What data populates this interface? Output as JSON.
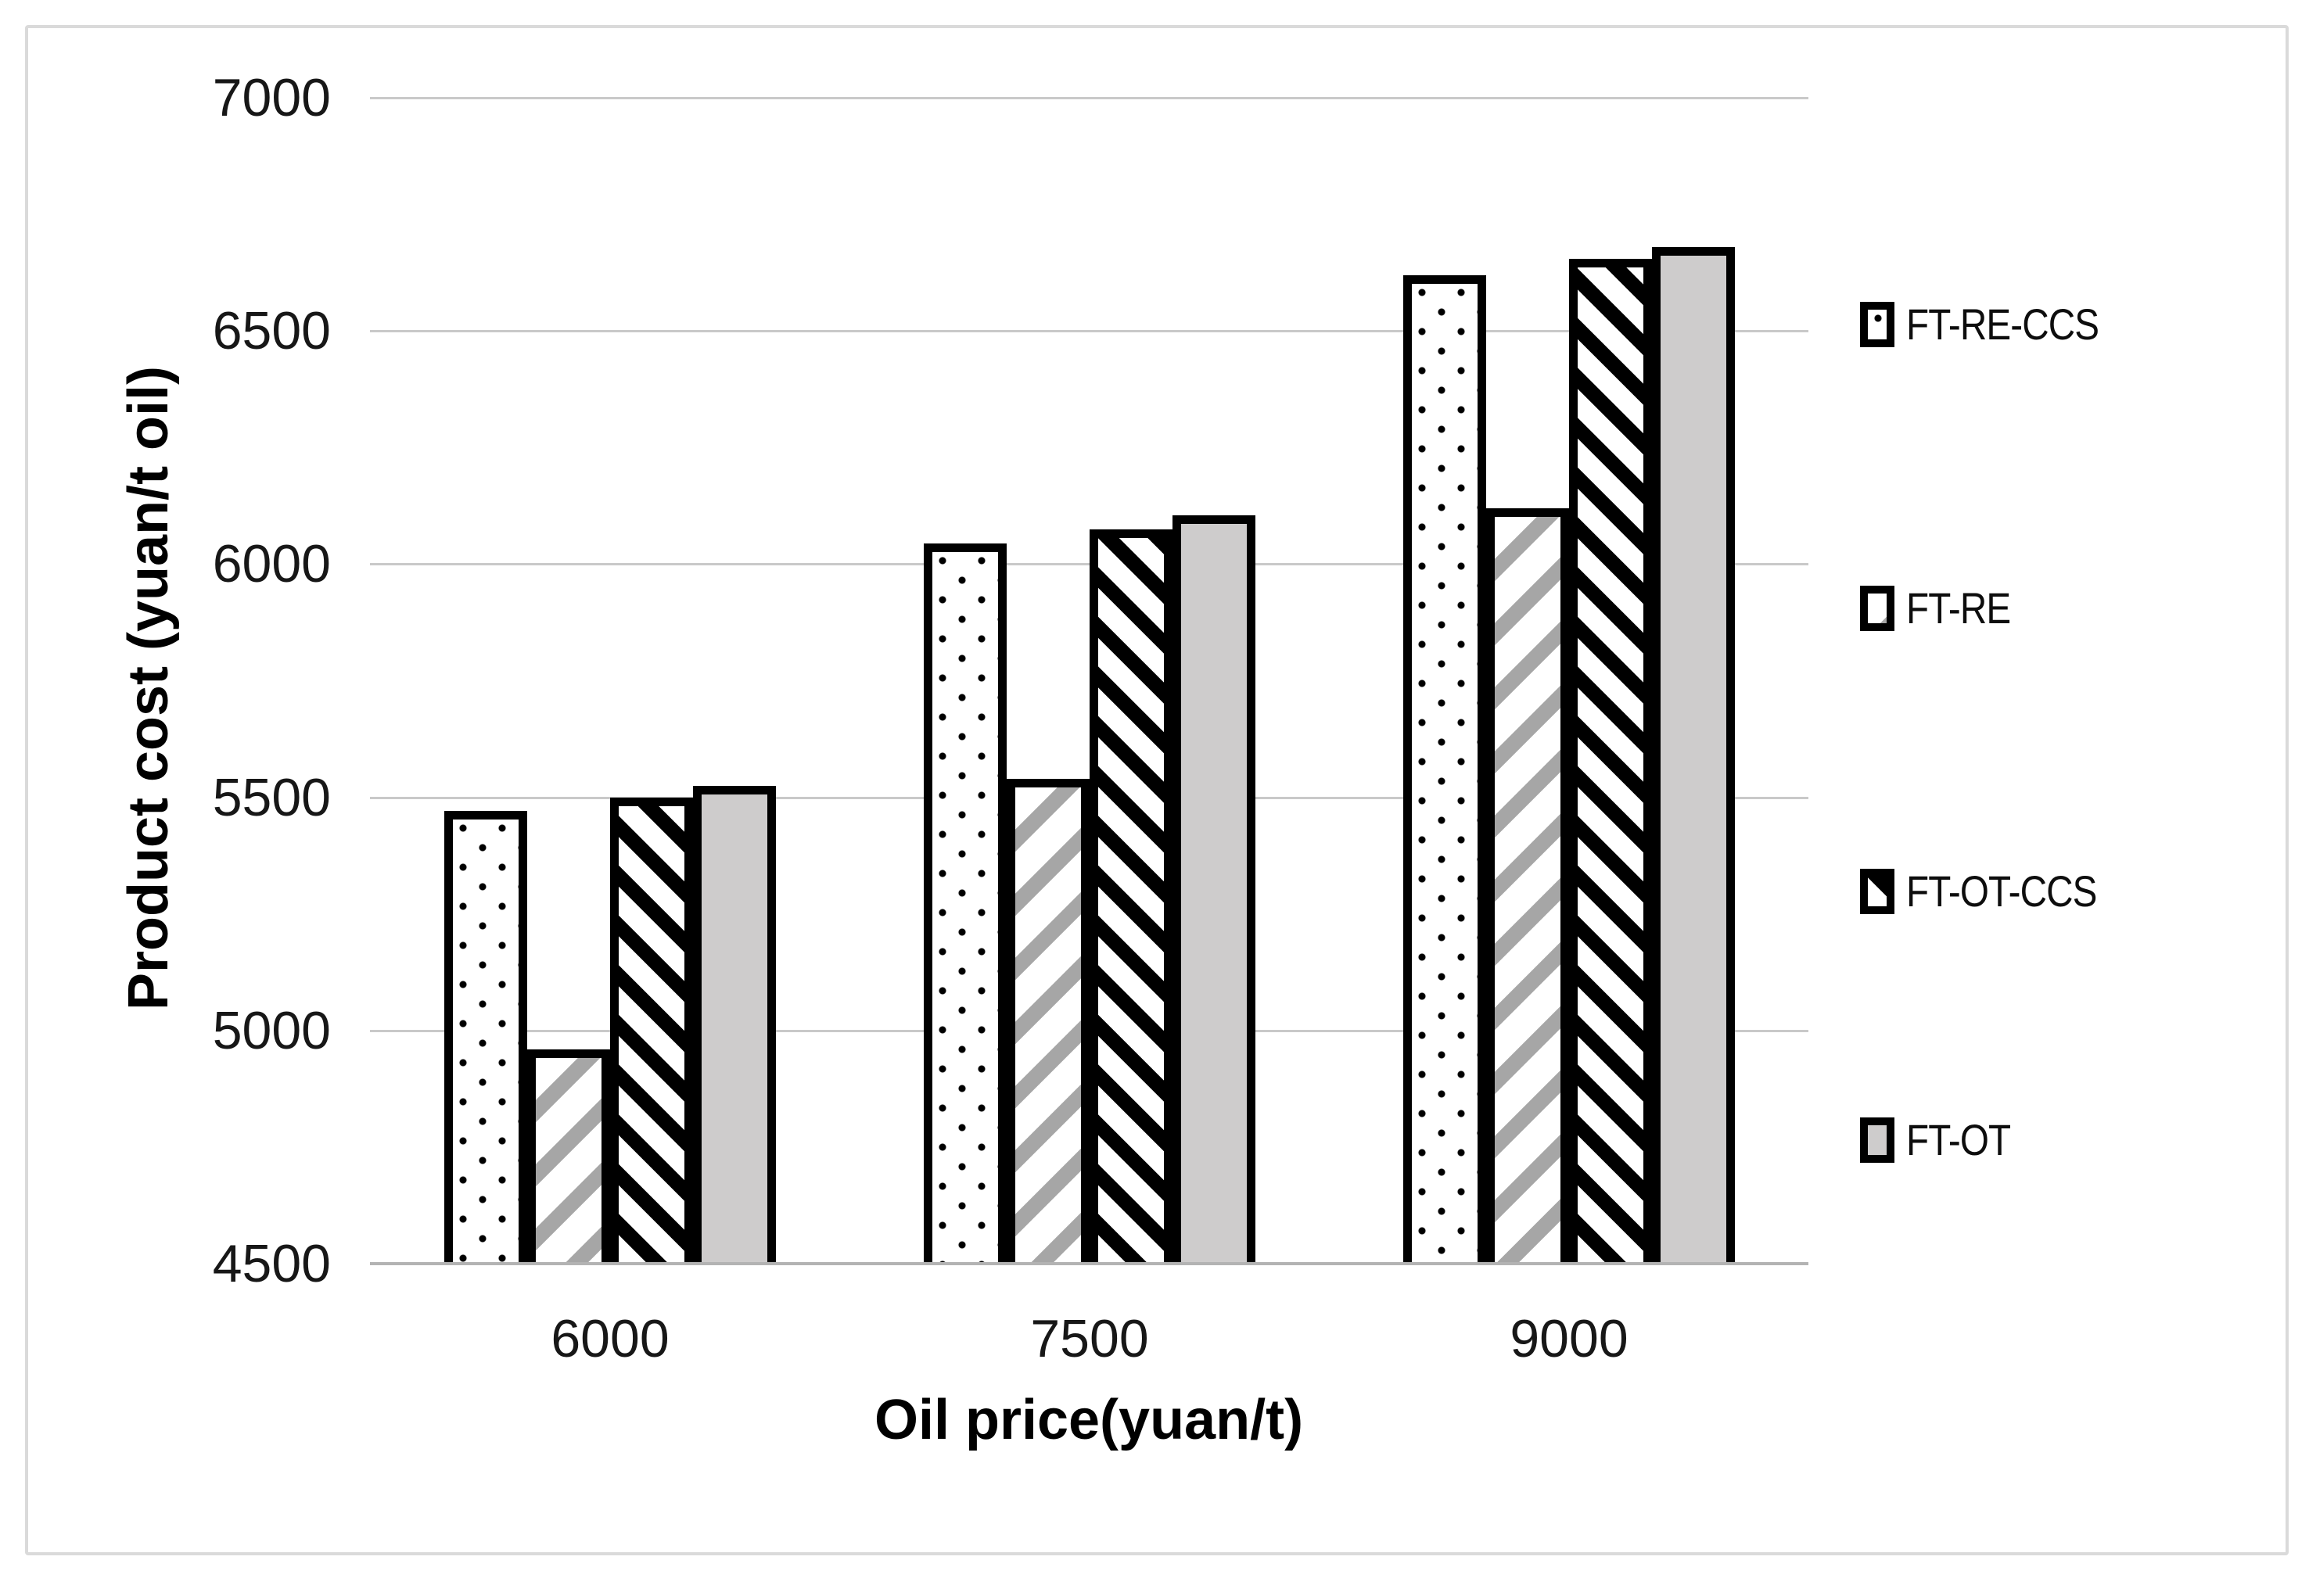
{
  "chart_data": {
    "type": "bar",
    "title": "",
    "xlabel": "Oil price(yuan/t)",
    "ylabel": "Product cost (yuan/t oil)",
    "categories": [
      "6000",
      "7500",
      "9000"
    ],
    "series": [
      {
        "name": "FT-RE-CCS",
        "pattern": "dotted",
        "values": [
          5470,
          6045,
          6620
        ]
      },
      {
        "name": "FT-RE",
        "pattern": "light_diagonal_up",
        "values": [
          4960,
          5540,
          6120
        ]
      },
      {
        "name": "FT-OT-CCS",
        "pattern": "black_diagonal_down",
        "values": [
          5500,
          6075,
          6655
        ]
      },
      {
        "name": "FT-OT",
        "pattern": "solid_gray",
        "values": [
          5525,
          6105,
          6680
        ]
      }
    ],
    "y_ticks": [
      7000,
      6500,
      6000,
      5500,
      5000,
      4500
    ],
    "ylim": [
      4500,
      7000
    ],
    "grid": true,
    "legend_position": "right",
    "legend": [
      "FT-RE-CCS",
      "FT-RE",
      "FT-OT-CCS",
      "FT-OT"
    ]
  },
  "colors": {
    "pattern_black": "#000000",
    "stripe_gray": "#a6a6a6",
    "bar_gray_fill": "#cecccc",
    "gridline": "#c9c9c9",
    "axis_line": "#b3b3b3",
    "text": "#171717",
    "frame_border": "#dadada",
    "background": "#ffffff"
  }
}
